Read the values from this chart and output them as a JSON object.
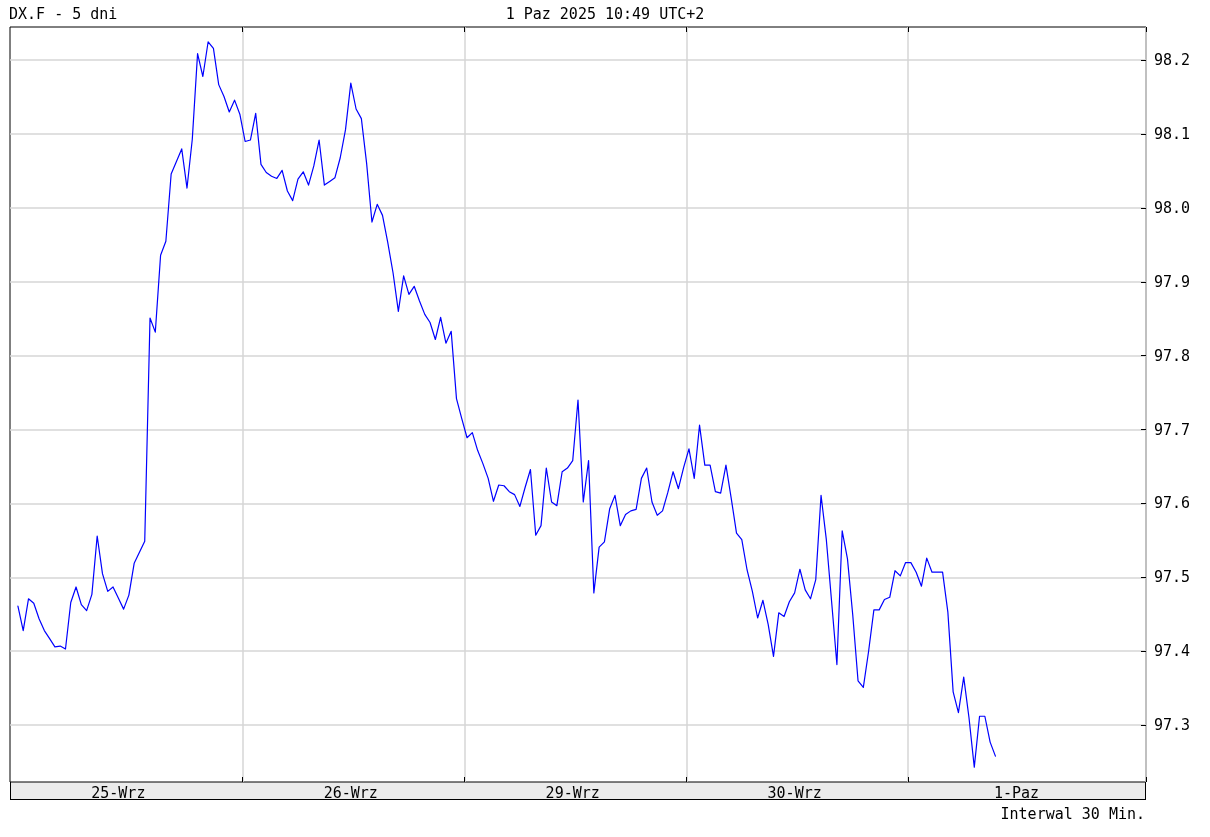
{
  "chart_data": {
    "type": "line",
    "title": "DX.F - 5 dni",
    "subtitle": "1 Paz 2025 10:49 UTC+2",
    "annotations": [
      "Interwal 30 Min."
    ],
    "categories": [
      null,
      null,
      null,
      null,
      null,
      null,
      null,
      null,
      null,
      null,
      null,
      null,
      null,
      null,
      null,
      null,
      null,
      null,
      null,
      null,
      "25-Wrz",
      null,
      null,
      null,
      null,
      null,
      null,
      null,
      null,
      null,
      null,
      null,
      null,
      null,
      null,
      null,
      null,
      null,
      null,
      null,
      null,
      null,
      null,
      null,
      null,
      null,
      null,
      null,
      null,
      null,
      null,
      null,
      null,
      null,
      null,
      null,
      null,
      null,
      null,
      null,
      null,
      null,
      null,
      null,
      "26-Wrz",
      null,
      null,
      null,
      null,
      null,
      null,
      null,
      null,
      null,
      null,
      null,
      null,
      null,
      null,
      null,
      null,
      null,
      null,
      null,
      null,
      null,
      null,
      null,
      null,
      null,
      null,
      null,
      null,
      null,
      null,
      null,
      null,
      null,
      null,
      null,
      null,
      null,
      null,
      null,
      null,
      null,
      "29-Wrz",
      null,
      null,
      null,
      null,
      null,
      null,
      null,
      null,
      null,
      null,
      null,
      null,
      null,
      null,
      null,
      null,
      null,
      null,
      null,
      null,
      null,
      null,
      null,
      null,
      null,
      null,
      null,
      null,
      null,
      null,
      null,
      null,
      null,
      null,
      null,
      null,
      null,
      null,
      null,
      null,
      null,
      "30-Wrz",
      null,
      null,
      null,
      null,
      null,
      null,
      null,
      null,
      null,
      null,
      null,
      null,
      null,
      null,
      null,
      null,
      null,
      null,
      null,
      null,
      null,
      null,
      null,
      null,
      null,
      null,
      null,
      null,
      null,
      null,
      null,
      null,
      null,
      null,
      null,
      null,
      null,
      null,
      null,
      null,
      null,
      "1-Paz",
      null,
      null,
      null,
      null,
      null,
      null,
      null,
      null,
      null,
      null,
      null,
      null,
      null,
      null,
      null,
      null,
      null,
      null,
      null,
      null,
      null,
      null,
      null,
      null
    ],
    "values": [
      null,
      97.461,
      97.428,
      97.471,
      97.465,
      97.444,
      97.428,
      97.417,
      97.406,
      97.407,
      97.403,
      97.466,
      97.487,
      97.463,
      97.455,
      97.477,
      97.556,
      97.505,
      97.481,
      97.487,
      97.472,
      97.457,
      97.476,
      97.519,
      97.534,
      97.549,
      97.851,
      97.832,
      97.936,
      97.955,
      98.046,
      98.063,
      98.08,
      98.027,
      98.093,
      98.209,
      98.178,
      98.225,
      98.216,
      98.167,
      98.151,
      98.13,
      98.146,
      98.127,
      98.09,
      98.092,
      98.128,
      98.059,
      98.048,
      98.043,
      98.04,
      98.051,
      98.023,
      98.01,
      98.039,
      98.049,
      98.031,
      98.057,
      98.092,
      98.031,
      98.036,
      98.041,
      98.068,
      98.106,
      98.169,
      98.134,
      98.121,
      98.06,
      97.981,
      98.005,
      97.99,
      97.953,
      97.912,
      97.86,
      97.908,
      97.883,
      97.894,
      97.874,
      97.856,
      97.845,
      97.822,
      97.852,
      97.817,
      97.833,
      97.742,
      97.715,
      97.689,
      97.696,
      97.672,
      97.654,
      97.634,
      97.603,
      97.625,
      97.624,
      97.616,
      97.612,
      97.596,
      97.622,
      97.646,
      97.557,
      97.57,
      97.648,
      97.602,
      97.597,
      97.643,
      97.648,
      97.658,
      97.74,
      97.602,
      97.658,
      97.479,
      97.541,
      97.548,
      97.593,
      97.611,
      97.57,
      97.585,
      97.59,
      97.592,
      97.634,
      97.648,
      97.602,
      97.584,
      97.59,
      97.615,
      97.643,
      97.62,
      97.649,
      97.674,
      97.634,
      97.706,
      97.652,
      97.652,
      97.616,
      97.614,
      97.652,
      97.607,
      97.56,
      97.551,
      97.51,
      97.481,
      97.445,
      97.469,
      97.436,
      97.393,
      97.452,
      97.447,
      97.467,
      97.479,
      97.511,
      97.483,
      97.471,
      97.497,
      97.611,
      97.551,
      97.467,
      97.382,
      97.563,
      97.525,
      97.449,
      97.36,
      97.351,
      97.4,
      97.456,
      97.456,
      97.47,
      97.473,
      97.509,
      97.502,
      97.52,
      97.52,
      97.507,
      97.488,
      97.526,
      97.507,
      97.507,
      97.507,
      97.453,
      97.345,
      97.317,
      97.365,
      97.31,
      97.243,
      97.312,
      97.312,
      97.277,
      97.258,
      null,
      null,
      null,
      null,
      null,
      null,
      null,
      null,
      null,
      null,
      null,
      null,
      null,
      null,
      null,
      null,
      null,
      null,
      null,
      null,
      null,
      null,
      null,
      null,
      null,
      null,
      null,
      null
    ],
    "color": "#0000ff",
    "ylim": [
      97.223,
      98.245
    ],
    "yticks": [
      97.3,
      97.4,
      97.5,
      97.6,
      97.7,
      97.8,
      97.9,
      {
        "value": 98,
        "label": "98.0"
      },
      98.1,
      98.2
    ],
    "grid": true,
    "marker": "none",
    "line_style": "solid"
  }
}
